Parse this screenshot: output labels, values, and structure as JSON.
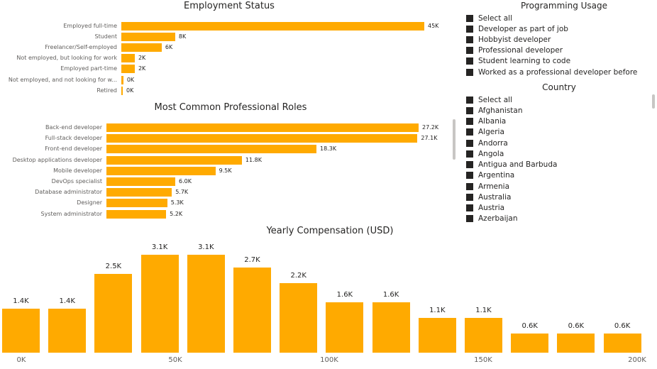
{
  "employment": {
    "title": "Employment Status"
  },
  "roles": {
    "title": "Most Common Professional Roles"
  },
  "compensation": {
    "title": "Yearly Compensation (USD)"
  },
  "programming_usage": {
    "title": "Programming Usage",
    "items": [
      "Select all",
      "Developer as part of job",
      "Hobbyist developer",
      "Professional developer",
      "Student learning to code",
      "Worked as a professional developer before"
    ]
  },
  "country": {
    "title": "Country",
    "items": [
      "Select all",
      "Afghanistan",
      "Albania",
      "Algeria",
      "Andorra",
      "Angola",
      "Antigua and Barbuda",
      "Argentina",
      "Armenia",
      "Australia",
      "Austria",
      "Azerbaijan"
    ]
  },
  "colors": {
    "bar": "#ffaa00",
    "text": "#252423",
    "checkbox": "#252423"
  },
  "chart_data": [
    {
      "type": "bar",
      "orientation": "horizontal",
      "title": "Employment Status",
      "categories": [
        "Employed full-time",
        "Student",
        "Freelancer/Self-employed",
        "Not employed, but looking for work",
        "Employed part-time",
        "Not employed, and not looking for w...",
        "Retired"
      ],
      "values": [
        45,
        8,
        6,
        2,
        2,
        0.3,
        0.2
      ],
      "labels": [
        "45K",
        "8K",
        "6K",
        "2K",
        "2K",
        "0K",
        "0K"
      ],
      "unit": "thousands",
      "grid": false
    },
    {
      "type": "bar",
      "orientation": "horizontal",
      "title": "Most Common Professional Roles",
      "categories": [
        "Back-end developer",
        "Full-stack developer",
        "Front-end developer",
        "Desktop applications developer",
        "Mobile developer",
        "DevOps specialist",
        "Database administrator",
        "Designer",
        "System administrator"
      ],
      "values": [
        27.2,
        27.1,
        18.3,
        11.8,
        9.5,
        6.0,
        5.7,
        5.3,
        5.2
      ],
      "labels": [
        "27.2K",
        "27.1K",
        "18.3K",
        "11.8K",
        "9.5K",
        "6.0K",
        "5.7K",
        "5.3K",
        "5.2K"
      ],
      "unit": "thousands",
      "grid": false
    },
    {
      "type": "bar",
      "orientation": "vertical",
      "title": "Yearly Compensation (USD)",
      "x": [
        0,
        15000,
        30000,
        45000,
        60000,
        75000,
        90000,
        105000,
        120000,
        135000,
        150000,
        165000,
        180000,
        195000
      ],
      "values": [
        1.4,
        1.4,
        2.5,
        3.1,
        3.1,
        2.7,
        2.2,
        1.6,
        1.6,
        1.1,
        1.1,
        0.6,
        0.6,
        0.6
      ],
      "labels": [
        "1.4K",
        "1.4K",
        "2.5K",
        "3.1K",
        "3.1K",
        "2.7K",
        "2.2K",
        "1.6K",
        "1.6K",
        "1.1K",
        "1.1K",
        "0.6K",
        "0.6K",
        "0.6K"
      ],
      "unit": "thousands",
      "xticks": [
        "0K",
        "50K",
        "100K",
        "150K",
        "200K"
      ],
      "xlim": [
        0,
        200000
      ],
      "grid": false
    }
  ]
}
